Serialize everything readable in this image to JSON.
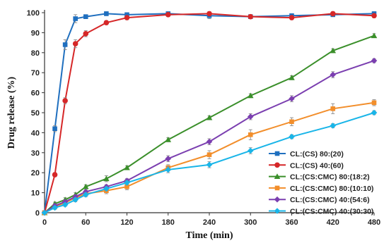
{
  "chart_data": {
    "type": "line",
    "title": "",
    "xlabel": "Time (min)",
    "ylabel": "Drug release (%)",
    "xlim": [
      0,
      480
    ],
    "ylim": [
      0,
      100
    ],
    "x_ticks": [
      0,
      60,
      120,
      180,
      240,
      300,
      360,
      420,
      480
    ],
    "y_ticks": [
      0,
      10,
      20,
      30,
      40,
      50,
      60,
      70,
      80,
      90,
      100
    ],
    "grid": false,
    "legend_position": "lower-right",
    "series": [
      {
        "name": "CL:(CS) 80:(20)",
        "color": "#1f6fbf",
        "marker": "square",
        "x": [
          0,
          15,
          30,
          45,
          60,
          90,
          120,
          180,
          240,
          300,
          360,
          420,
          480
        ],
        "y": [
          0,
          42,
          84,
          97,
          98,
          99.5,
          99,
          99.5,
          98.5,
          98,
          98.5,
          99,
          99.5
        ],
        "error": [
          0,
          1.5,
          2.5,
          2,
          1,
          1,
          1,
          1,
          1.5,
          1,
          1,
          1,
          1
        ]
      },
      {
        "name": "CL:(CS) 40:(60)",
        "color": "#d62728",
        "marker": "circle",
        "x": [
          0,
          15,
          30,
          45,
          60,
          90,
          120,
          180,
          240,
          300,
          360,
          420,
          480
        ],
        "y": [
          0,
          19,
          56,
          84.5,
          89.5,
          95,
          97.5,
          99,
          99.5,
          98,
          97.5,
          99.5,
          98.5
        ],
        "error": [
          0,
          1,
          1.5,
          2,
          1.5,
          1,
          1,
          1,
          1,
          1,
          1,
          1,
          1
        ]
      },
      {
        "name": "CL:(CS:CMC) 80:(18:2)",
        "color": "#3a8f2a",
        "marker": "triangle",
        "x": [
          0,
          15,
          30,
          45,
          60,
          90,
          120,
          180,
          240,
          300,
          360,
          420,
          480
        ],
        "y": [
          0,
          4.5,
          6.5,
          9,
          13,
          17,
          22.5,
          36.5,
          47.5,
          58.5,
          67.5,
          81,
          88.5
        ],
        "error": [
          0,
          0.8,
          1,
          1,
          1,
          1.5,
          1,
          1,
          1,
          1,
          1,
          1,
          1
        ]
      },
      {
        "name": "CL:(CS:CMC) 80:(10:10)",
        "color": "#f28e2b",
        "marker": "square",
        "x": [
          0,
          15,
          30,
          45,
          60,
          90,
          120,
          180,
          240,
          300,
          360,
          420,
          480
        ],
        "y": [
          0,
          3,
          5,
          7.5,
          9.5,
          11,
          13,
          22.5,
          29,
          39,
          45.5,
          52,
          55
        ],
        "error": [
          0,
          0.8,
          0.8,
          1,
          1,
          1.5,
          1.5,
          1.5,
          2,
          2.5,
          2,
          2.5,
          1.5
        ]
      },
      {
        "name": "CL:(CS:CMC) 40:(54:6)",
        "color": "#7b3fb0",
        "marker": "diamond",
        "x": [
          0,
          15,
          30,
          45,
          60,
          90,
          120,
          180,
          240,
          300,
          360,
          420,
          480
        ],
        "y": [
          0,
          3.5,
          5.5,
          8,
          10.5,
          13,
          16,
          27,
          35.5,
          48,
          57,
          69,
          76
        ],
        "error": [
          0,
          0.8,
          0.8,
          1,
          1,
          1,
          1,
          1.5,
          1.5,
          1.5,
          1.5,
          1.5,
          1
        ]
      },
      {
        "name": "CL:(CS:CMC) 40:(30:30)",
        "color": "#19b5e8",
        "marker": "diamond",
        "x": [
          0,
          15,
          30,
          45,
          60,
          90,
          120,
          180,
          240,
          300,
          360,
          420,
          480
        ],
        "y": [
          0,
          2.5,
          4,
          6.5,
          9,
          12,
          15,
          21.5,
          24,
          31,
          38,
          43.5,
          50
        ],
        "error": [
          0,
          0.8,
          0.8,
          1,
          1,
          1,
          1,
          1.5,
          1.5,
          1.5,
          1,
          1,
          1
        ]
      }
    ]
  }
}
